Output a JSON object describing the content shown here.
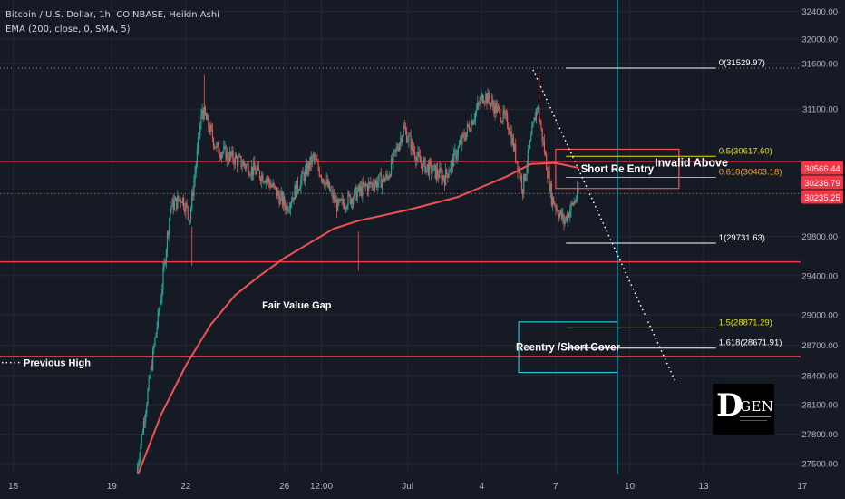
{
  "header": {
    "symbol_line": "Bitcoin / U.S. Dollar, 1h, COINBASE, Heikin Ashi",
    "indicator_line": "EMA (200, close, 0, SMA, 5)"
  },
  "logo": {
    "big_letter": "D",
    "rest": "GEN"
  },
  "colors": {
    "background": "#161a25",
    "grid": "#232835",
    "text": "#d1d4dc",
    "bull": "#26a69a",
    "bear": "#ef5350",
    "ema": "#ef5350",
    "level_line": "#f23645",
    "yellow": "#e4e100",
    "cyan": "#22ab94"
  },
  "chart_data": {
    "type": "candlestick",
    "title": "Bitcoin / U.S. Dollar, 1h, COINBASE, Heikin Ashi",
    "ylim": [
      27300,
      32450
    ],
    "y_scale": "linear",
    "y_ticks": [
      "27500.00",
      "27800.00",
      "28100.00",
      "28400.00",
      "28700.00",
      "29000.00",
      "29400.00",
      "29800.00",
      "30235.25",
      "30236.79",
      "30566.44",
      "31100.00",
      "31600.00",
      "32000.00",
      "32400.00"
    ],
    "x_ticks": [
      "15",
      "19",
      "22",
      "26",
      "12:00",
      "Jul",
      "4",
      "7",
      "10",
      "13",
      "17"
    ],
    "price_tags": [
      {
        "label": "30566.44",
        "value": 30566.44
      },
      {
        "label": "30236.79",
        "value": 30236.79
      },
      {
        "label": "30235.25",
        "value": 30235.25
      }
    ],
    "price_series_anchors": [
      {
        "x": "Jun 20 00:00",
        "y": 27400
      },
      {
        "x": "Jun 20 12:00",
        "y": 28300
      },
      {
        "x": "Jun 21 00:00",
        "y": 29200
      },
      {
        "x": "Jun 21 09:00",
        "y": 30100
      },
      {
        "x": "Jun 21 20:00",
        "y": 30200
      },
      {
        "x": "Jun 22 04:00",
        "y": 30000
      },
      {
        "x": "Jun 22 16:00",
        "y": 31100
      },
      {
        "x": "Jun 23 06:00",
        "y": 30700
      },
      {
        "x": "Jun 24 06:00",
        "y": 30550
      },
      {
        "x": "Jun 25 06:00",
        "y": 30400
      },
      {
        "x": "Jun 26 02:00",
        "y": 30100
      },
      {
        "x": "Jun 27 04:00",
        "y": 30600
      },
      {
        "x": "Jun 28 04:00",
        "y": 30100
      },
      {
        "x": "Jun 29 06:00",
        "y": 30300
      },
      {
        "x": "Jun 30 04:00",
        "y": 30400
      },
      {
        "x": "Jun 30 20:00",
        "y": 30900
      },
      {
        "x": "Jul 1 12:00",
        "y": 30550
      },
      {
        "x": "Jul 2 12:00",
        "y": 30400
      },
      {
        "x": "Jul 3 06:00",
        "y": 30800
      },
      {
        "x": "Jul 4 02:00",
        "y": 31250
      },
      {
        "x": "Jul 5 02:00",
        "y": 30950
      },
      {
        "x": "Jul 5 16:00",
        "y": 30300
      },
      {
        "x": "Jul 6 06:00",
        "y": 31150
      },
      {
        "x": "Jul 6 20:00",
        "y": 30200
      },
      {
        "x": "Jul 7 08:00",
        "y": 29950
      },
      {
        "x": "Jul 7 22:00",
        "y": 30240
      }
    ],
    "ema_anchors": [
      {
        "x": "Jun 20 00:00",
        "y": 27350
      },
      {
        "x": "Jun 21 00:00",
        "y": 28000
      },
      {
        "x": "Jun 22 00:00",
        "y": 28500
      },
      {
        "x": "Jun 23 00:00",
        "y": 28900
      },
      {
        "x": "Jun 24 00:00",
        "y": 29200
      },
      {
        "x": "Jun 25 00:00",
        "y": 29400
      },
      {
        "x": "Jun 26 00:00",
        "y": 29580
      },
      {
        "x": "Jun 27 00:00",
        "y": 29730
      },
      {
        "x": "Jun 28 00:00",
        "y": 29880
      },
      {
        "x": "Jun 29 00:00",
        "y": 29960
      },
      {
        "x": "Jul 1 00:00",
        "y": 30070
      },
      {
        "x": "Jul 3 00:00",
        "y": 30200
      },
      {
        "x": "Jul 5 00:00",
        "y": 30410
      },
      {
        "x": "Jul 6 00:00",
        "y": 30540
      },
      {
        "x": "Jul 7 00:00",
        "y": 30550
      },
      {
        "x": "Jul 7 22:00",
        "y": 30500
      }
    ],
    "horizontal_levels": [
      {
        "value": 30566.44,
        "style": "solid"
      },
      {
        "value": 30236.79,
        "style": "dotted"
      },
      {
        "value": 29540,
        "style": "solid"
      },
      {
        "value": 28590,
        "style": "solid"
      },
      {
        "value": 31529.97,
        "style": "dotted"
      }
    ],
    "fibonacci": {
      "levels": [
        {
          "label": "0(31529.97)",
          "value": 31529.97,
          "color": "#ffffff"
        },
        {
          "label": "0.5(30617.60)",
          "value": 30617.6,
          "color": "#e4e100"
        },
        {
          "label": "0.618(30403.18)",
          "value": 30403.18,
          "color": "#f5a623"
        },
        {
          "label": "1(29731.63)",
          "value": 29731.63,
          "color": "#ffffff"
        },
        {
          "label": "1.5(28871.29)",
          "value": 28871.29,
          "color": "#e4e100"
        },
        {
          "label": "1.618(28671.91)",
          "value": 28671.91,
          "color": "#ffffff"
        }
      ]
    },
    "trend_line": {
      "from": {
        "x": "Jul 6 02:00",
        "y": 31500
      },
      "to": {
        "x": "Jul 11 20:00",
        "y": 28350
      }
    },
    "vertical_line": {
      "x": "Jul 9 12:00"
    },
    "boxes": [
      {
        "label": "Short Re Entry",
        "top": 30690,
        "bottom": 30290,
        "from": "Jul 7 00:00",
        "to": "Jul 12 00:00"
      },
      {
        "label": "Reentry /Short Cover",
        "top": 28930,
        "bottom": 28430,
        "from": "Jul 5 12:00",
        "to": "Jul 9 12:00"
      }
    ],
    "annotations": [
      {
        "text": "Invalid Above",
        "x": "Jul 12 12:00",
        "y": 30550
      },
      {
        "text": "Fair Value Gap",
        "x": "Jun 26 12:00",
        "y": 29100
      },
      {
        "text": "Previous High",
        "x": "Jun 14 12:00",
        "y": 28530
      }
    ]
  }
}
